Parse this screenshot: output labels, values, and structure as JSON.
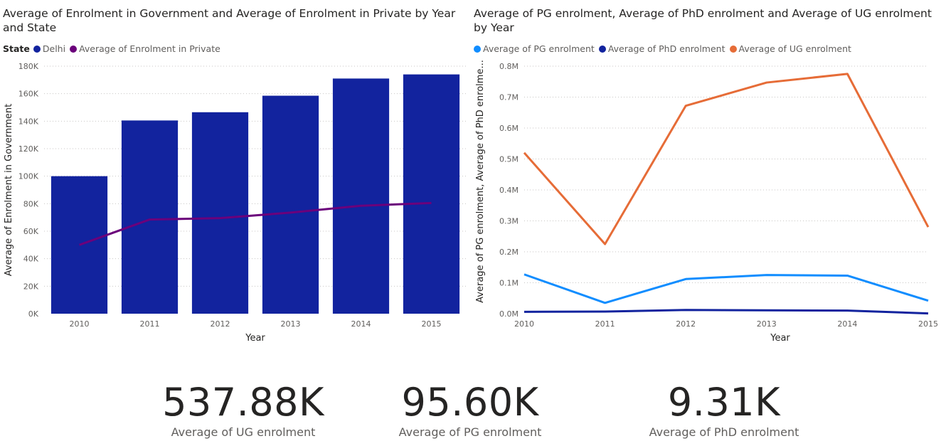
{
  "chart_data": [
    {
      "type": "bar",
      "title": "Average of Enrolment in Government and Average of Enrolment in Private by Year and State",
      "legend": {
        "title": "State",
        "items": [
          "Delhi",
          "Average of Enrolment in Private"
        ],
        "placement": "top-left"
      },
      "categories": [
        "2010",
        "2011",
        "2012",
        "2013",
        "2014",
        "2015"
      ],
      "series": [
        {
          "name": "Delhi",
          "type": "bar",
          "color": "#12239e",
          "values": [
            100000,
            140500,
            146500,
            158500,
            171000,
            174000
          ]
        },
        {
          "name": "Average of Enrolment in Private",
          "type": "line",
          "color": "#6b007b",
          "values": [
            50000,
            68500,
            69500,
            73500,
            78500,
            80500
          ]
        }
      ],
      "xlabel": "Year",
      "ylabel": "Average of Enrolment in Government",
      "ylim": [
        0,
        180000
      ],
      "yticks": [
        "0K",
        "20K",
        "40K",
        "60K",
        "80K",
        "100K",
        "120K",
        "140K",
        "160K",
        "180K"
      ],
      "grid": true
    },
    {
      "type": "line",
      "title": "Average of PG enrolment, Average of PhD enrolment and Average of UG enrolment by Year",
      "legend": {
        "items": [
          "Average of PG enrolment",
          "Average of PhD enrolment",
          "Average of UG enrolment"
        ],
        "placement": "top-left"
      },
      "x": [
        "2010",
        "2011",
        "2012",
        "2013",
        "2014",
        "2015"
      ],
      "series": [
        {
          "name": "Average of PG enrolment",
          "color": "#118dff",
          "values": [
            127000,
            35000,
            112000,
            125000,
            123000,
            42000
          ]
        },
        {
          "name": "Average of PhD enrolment",
          "color": "#12239e",
          "values": [
            6000,
            7000,
            12000,
            11000,
            10000,
            1000
          ]
        },
        {
          "name": "Average of UG enrolment",
          "color": "#e66c37",
          "values": [
            520000,
            225000,
            672000,
            747000,
            775000,
            280000
          ]
        }
      ],
      "xlabel": "Year",
      "ylabel": "Average of PG enrolment, Average of PhD enrolme...",
      "ylim": [
        0,
        800000
      ],
      "yticks": [
        "0.0M",
        "0.1M",
        "0.2M",
        "0.3M",
        "0.4M",
        "0.5M",
        "0.6M",
        "0.7M",
        "0.8M"
      ],
      "grid": true
    }
  ],
  "cards": [
    {
      "value": "537.88K",
      "label": "Average of UG enrolment"
    },
    {
      "value": "95.60K",
      "label": "Average of PG enrolment"
    },
    {
      "value": "9.31K",
      "label": "Average of PhD enrolment"
    }
  ]
}
